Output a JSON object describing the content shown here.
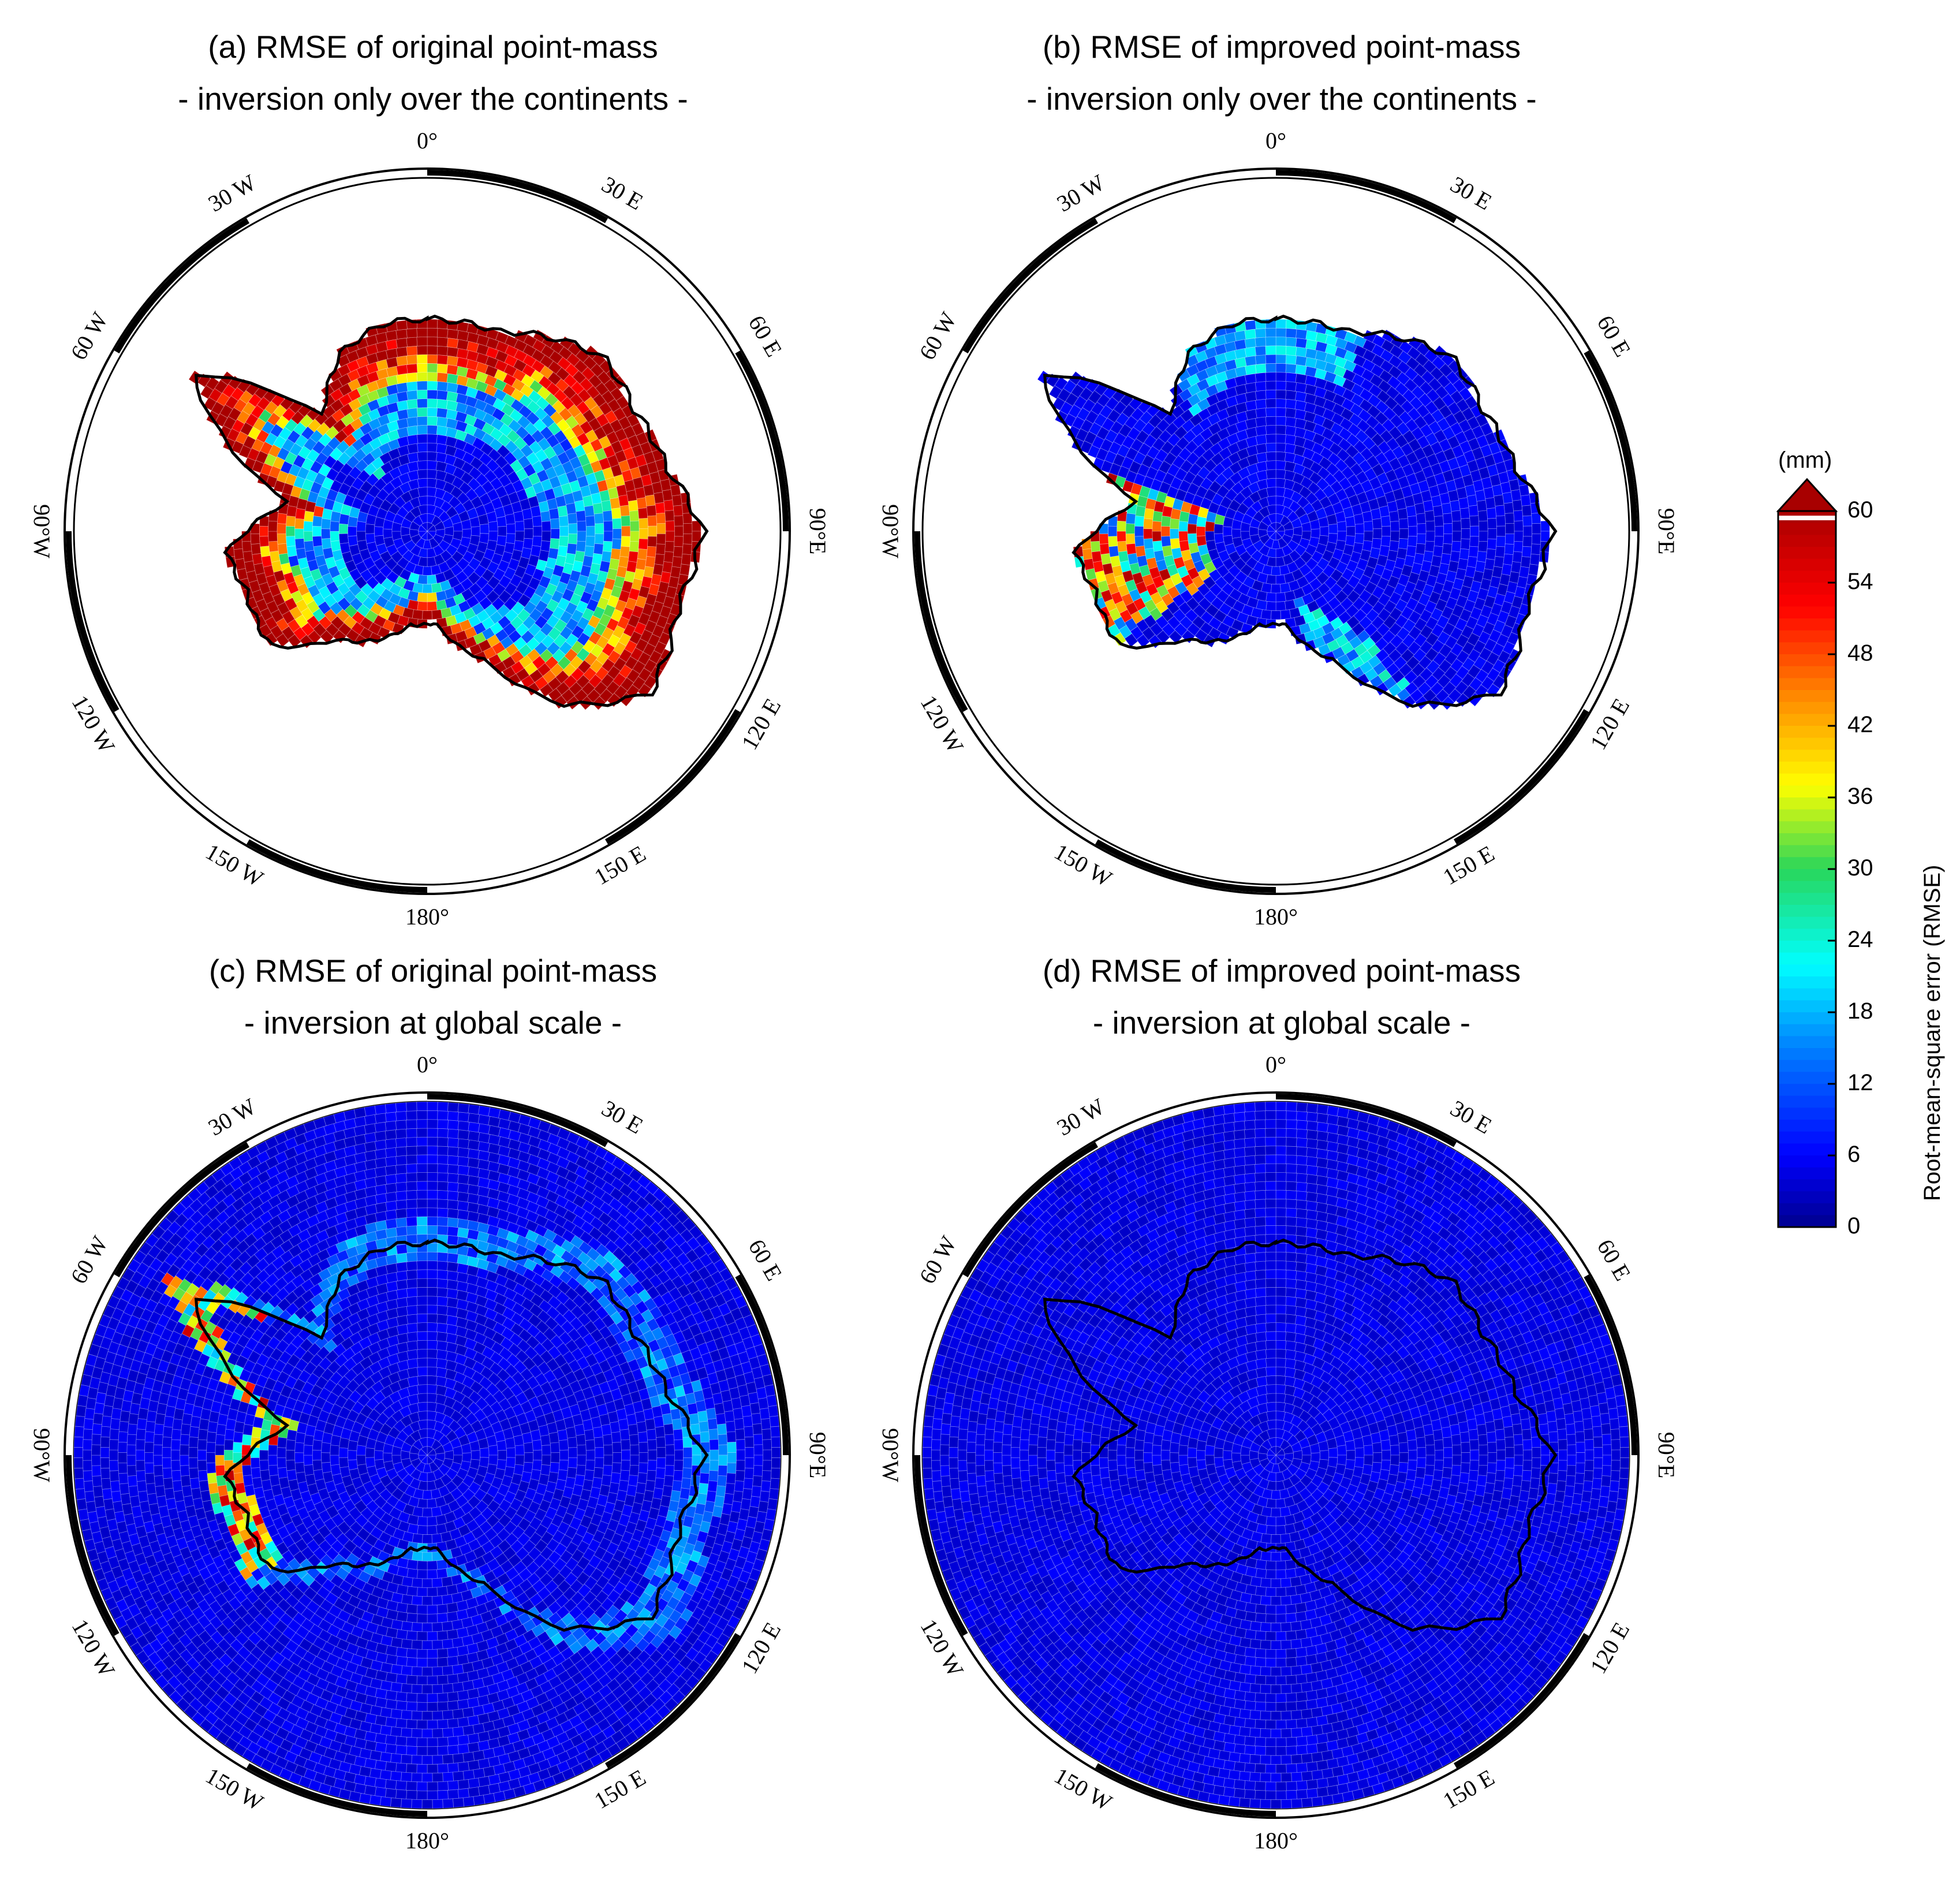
{
  "panels": [
    {
      "id": "a",
      "title_line1": "(a) RMSE of original point-mass",
      "title_line2": "- inversion only over the continents -",
      "background": "ocean-white",
      "field": "original-continental"
    },
    {
      "id": "b",
      "title_line1": "(b) RMSE of improved point-mass",
      "title_line2": "- inversion only over the continents -",
      "background": "ocean-white",
      "field": "improved-continental"
    },
    {
      "id": "c",
      "title_line1": "(c) RMSE of original point-mass",
      "title_line2": "- inversion at global scale -",
      "background": "ocean-filled",
      "field": "original-global"
    },
    {
      "id": "d",
      "title_line1": "(d) RMSE of improved point-mass",
      "title_line2": "- inversion at global scale -",
      "background": "ocean-filled",
      "field": "improved-global"
    }
  ],
  "longitude_labels": {
    "top": "0°",
    "bottom": "180°",
    "left": "90°W",
    "right": "90°E",
    "w30": "30 W",
    "w60": "60 W",
    "w120": "120 W",
    "w150": "150 W",
    "e30": "30 E",
    "e60": "60 E",
    "e120": "120 E",
    "e150": "150 E"
  },
  "colorbar": {
    "unit": "(mm)",
    "title": "Root-mean-square error (RMSE)",
    "min": 0,
    "max": 60,
    "ticks": [
      "60",
      "54",
      "48",
      "42",
      "36",
      "30",
      "24",
      "18",
      "12",
      "6",
      "0"
    ],
    "overflow_arrow": "upper",
    "colors": {
      "deep_blue": "#00008f",
      "blue": "#0000ff",
      "light_blue": "#0080ff",
      "cyan": "#00ffff",
      "green": "#29d65a",
      "yellow": "#ffff00",
      "orange": "#ff8000",
      "red": "#ff0000",
      "dark_red": "#a80000"
    }
  }
}
